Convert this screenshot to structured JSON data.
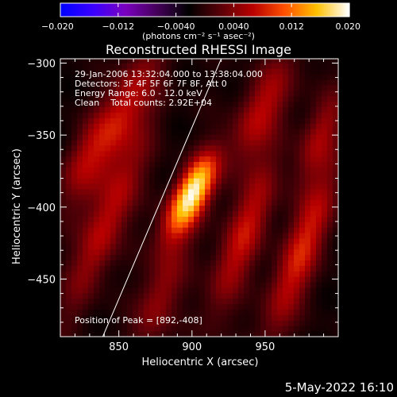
{
  "chart_data": {
    "type": "heatmap",
    "title": "Reconstructed RHESSI Image",
    "xlabel": "Heliocentric X (arcsec)",
    "ylabel": "Heliocentric Y (arcsec)",
    "xlim": [
      810,
      1000
    ],
    "ylim": [
      -490,
      -297
    ],
    "xticks": [
      850,
      900,
      950
    ],
    "yticks": [
      -300,
      -350,
      -400,
      -450
    ],
    "colorbar": {
      "label": "(photons cm⁻² s⁻¹ asec⁻²)",
      "range": [
        -0.02,
        0.02
      ],
      "ticks": [
        -0.02,
        -0.012,
        -0.004,
        0.004,
        0.012,
        0.02
      ],
      "tick_labels": [
        "−0.020",
        "−0.012",
        "−0.0040",
        "0.0040",
        "0.012",
        "0.020"
      ]
    },
    "annotations": [
      "29-Jan-2006 13:32:04.000 to 13:38:04.000",
      "Detectors: 3F 4F 5F 6F 7F 8F, Att 0",
      "Energy Range: 6.0 - 12.0 keV",
      "Clean    Total counts: 2.92E+04"
    ],
    "peak_label": "Position of Peak = [892,-408]",
    "peak": {
      "x": 892,
      "y": -408,
      "value": 0.02
    },
    "sources": [
      {
        "x": 898,
        "y": -395,
        "sigma_major": 22,
        "sigma_minor": 8,
        "angle_deg": 62,
        "amp": 0.016
      },
      {
        "x": 903,
        "y": -382,
        "sigma_major": 16,
        "sigma_minor": 7,
        "angle_deg": 65,
        "amp": 0.006
      },
      {
        "x": 850,
        "y": -340,
        "sigma_major": 40,
        "sigma_minor": 10,
        "angle_deg": 65,
        "amp": 0.0085
      },
      {
        "x": 842,
        "y": -410,
        "sigma_major": 45,
        "sigma_minor": 9,
        "angle_deg": 68,
        "amp": 0.008
      },
      {
        "x": 878,
        "y": -462,
        "sigma_major": 30,
        "sigma_minor": 9,
        "angle_deg": 70,
        "amp": 0.006
      },
      {
        "x": 948,
        "y": -332,
        "sigma_major": 30,
        "sigma_minor": 10,
        "angle_deg": 65,
        "amp": 0.0075
      },
      {
        "x": 935,
        "y": -420,
        "sigma_major": 40,
        "sigma_minor": 9,
        "angle_deg": 70,
        "amp": 0.0085
      },
      {
        "x": 975,
        "y": -430,
        "sigma_major": 45,
        "sigma_minor": 9,
        "angle_deg": 70,
        "amp": 0.0095
      },
      {
        "x": 988,
        "y": -350,
        "sigma_major": 25,
        "sigma_minor": 8,
        "angle_deg": 68,
        "amp": 0.006
      },
      {
        "x": 825,
        "y": -365,
        "sigma_major": 25,
        "sigma_minor": 8,
        "angle_deg": 65,
        "amp": 0.004
      }
    ],
    "limb_line": [
      [
        839,
        -490
      ],
      [
        920,
        -297
      ]
    ]
  },
  "date_stamp": "5-May-2022 16:10",
  "colors": {
    "background": "#000000",
    "foreground": "#ffffff",
    "colormap": [
      "#0000ff",
      "#3a00ff",
      "#7a00c0",
      "#45005a",
      "#000000",
      "#5a0008",
      "#b80000",
      "#ff5000",
      "#ffc000",
      "#ffffff"
    ]
  }
}
